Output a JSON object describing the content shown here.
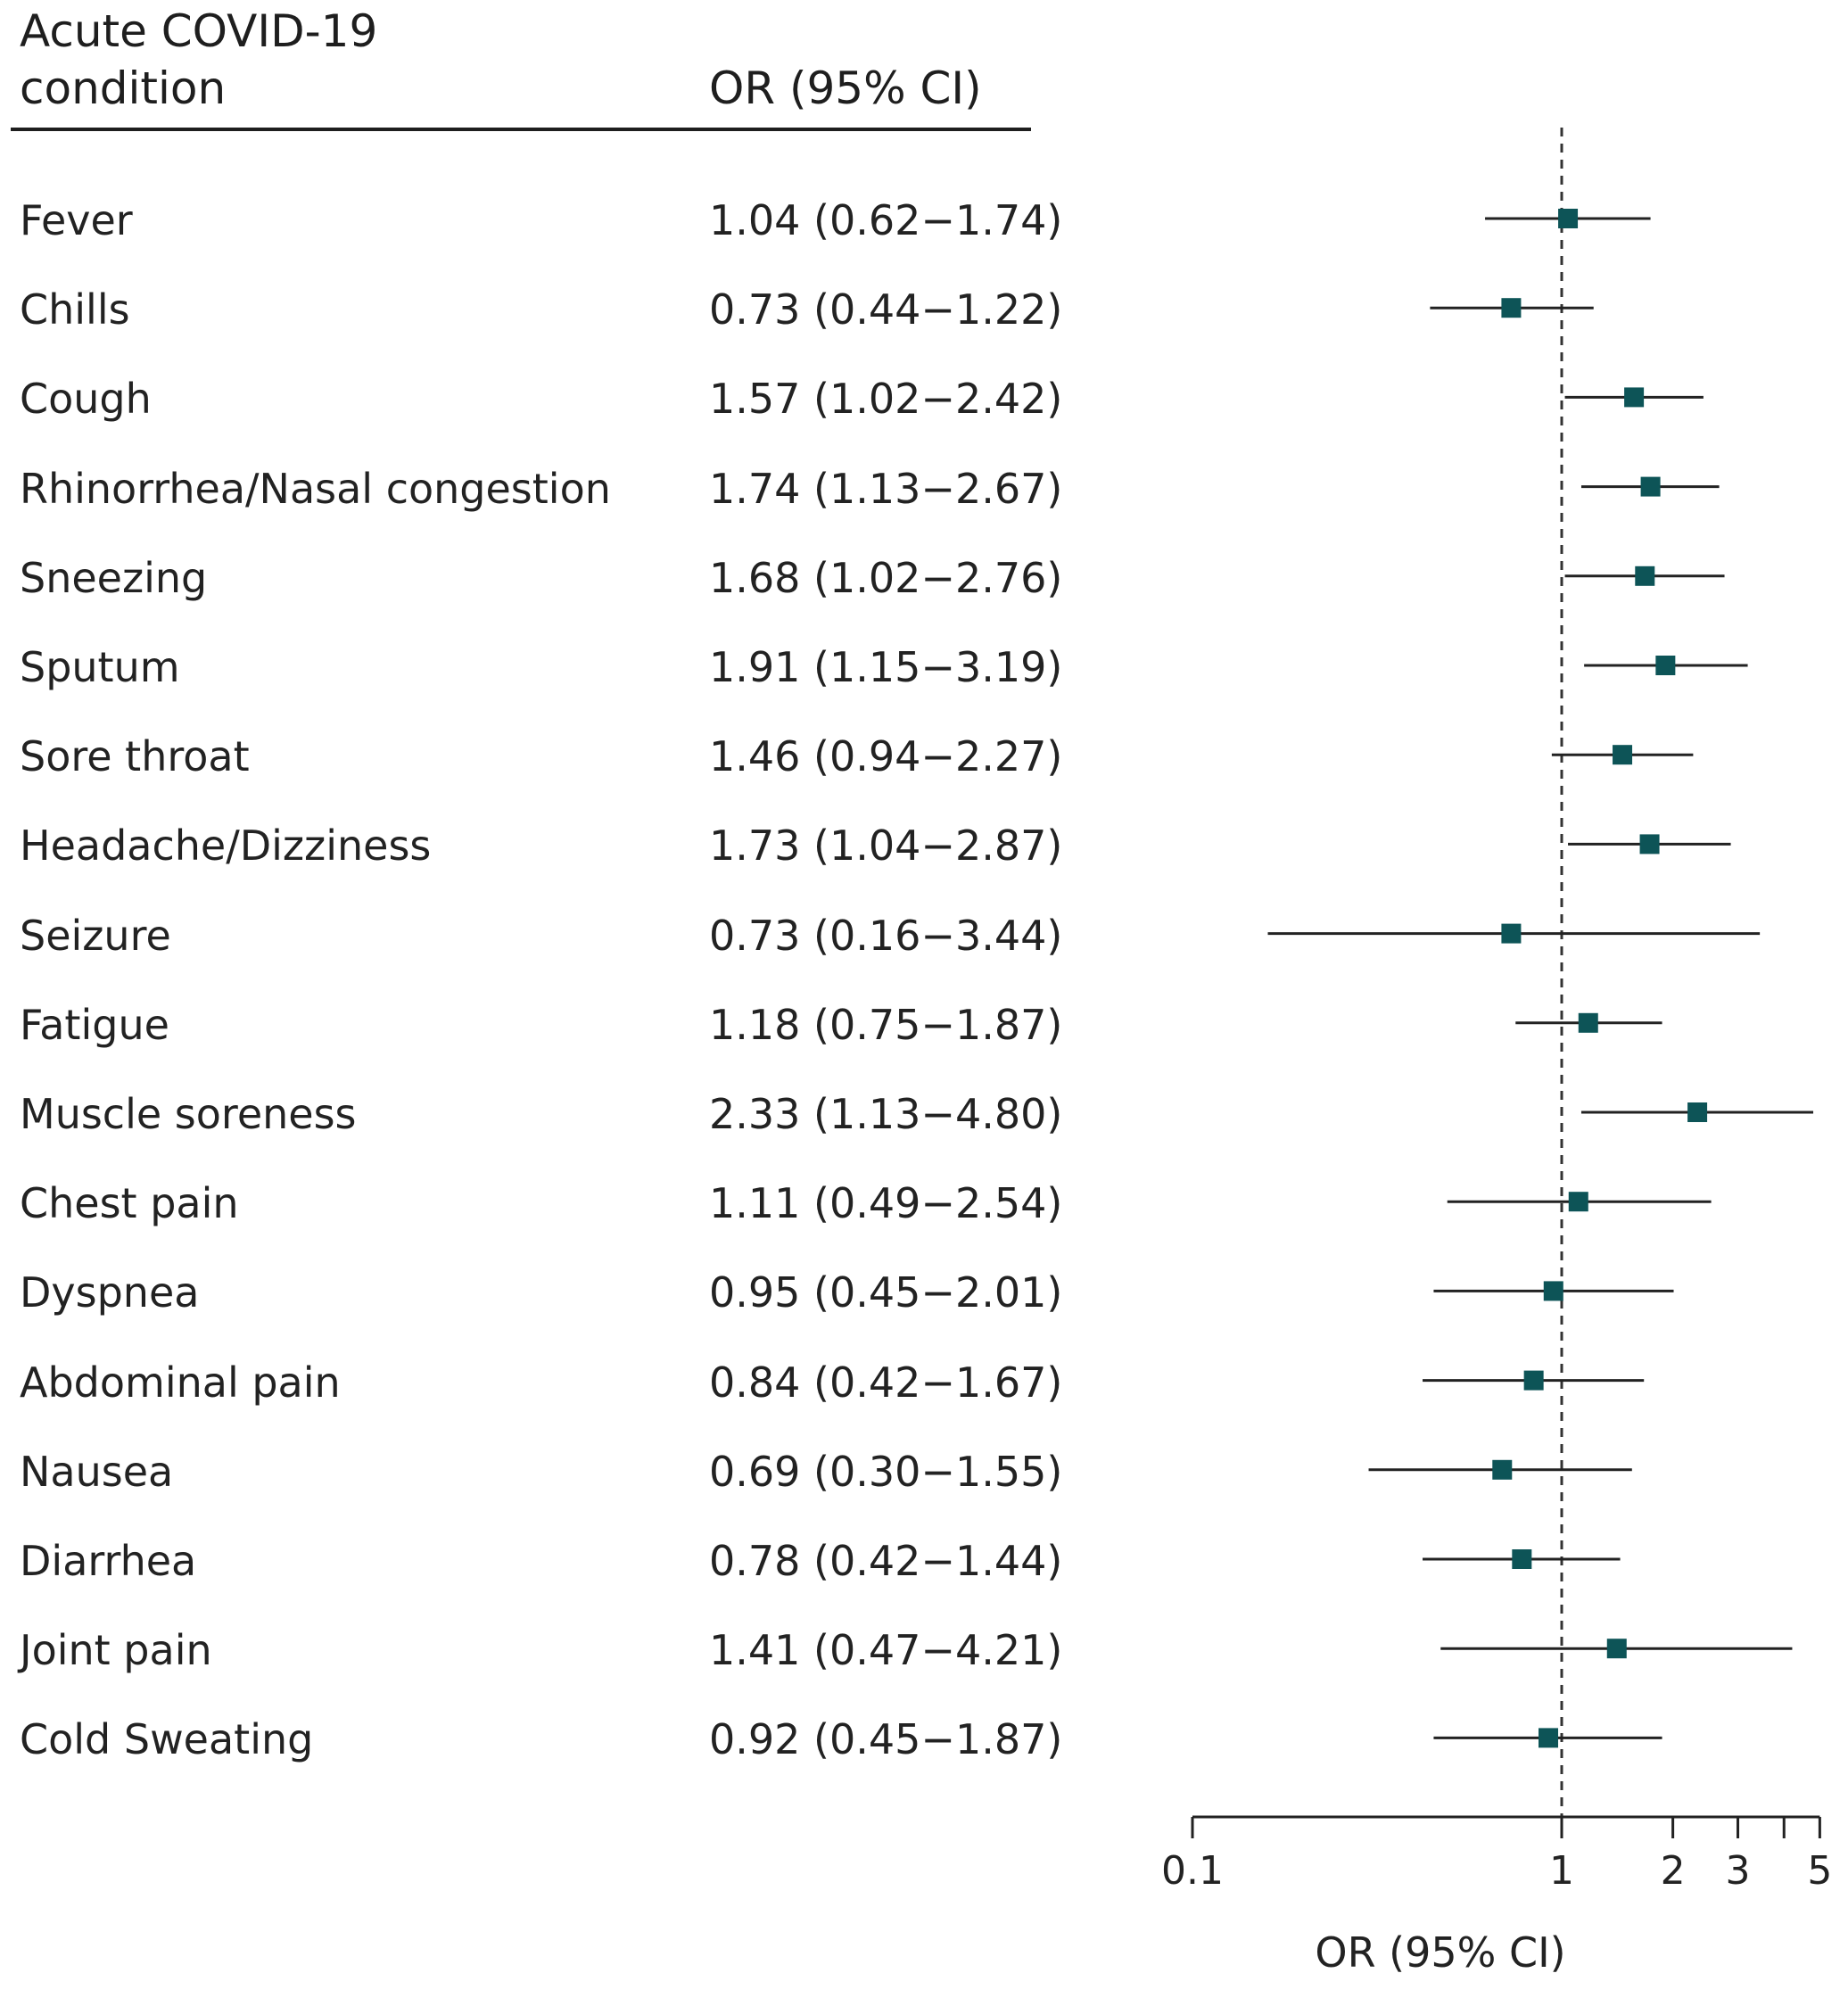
{
  "header": {
    "condition_line1": "Acute COVID-19",
    "condition_line2": "condition",
    "or_label": "OR (95% CI)"
  },
  "colors": {
    "marker": "#0d5457",
    "line": "#222222",
    "reference_line": "#333333"
  },
  "chart_data": {
    "type": "forest",
    "xlabel": "OR (95% CI)",
    "x_scale": "log",
    "xlim": [
      0.1,
      5
    ],
    "xticks": [
      0.1,
      1,
      2,
      3,
      4,
      5
    ],
    "xtick_labels": [
      "0.1",
      "1",
      "2",
      "3",
      "",
      "5"
    ],
    "reference_line": 1,
    "rows": [
      {
        "label": "Fever",
        "or": 1.04,
        "lo": 0.62,
        "hi": 1.74,
        "text": "1.04 (0.62−1.74)"
      },
      {
        "label": "Chills",
        "or": 0.73,
        "lo": 0.44,
        "hi": 1.22,
        "text": "0.73 (0.44−1.22)"
      },
      {
        "label": "Cough",
        "or": 1.57,
        "lo": 1.02,
        "hi": 2.42,
        "text": "1.57 (1.02−2.42)"
      },
      {
        "label": "Rhinorrhea/Nasal congestion",
        "or": 1.74,
        "lo": 1.13,
        "hi": 2.67,
        "text": "1.74 (1.13−2.67)"
      },
      {
        "label": "Sneezing",
        "or": 1.68,
        "lo": 1.02,
        "hi": 2.76,
        "text": "1.68 (1.02−2.76)"
      },
      {
        "label": "Sputum",
        "or": 1.91,
        "lo": 1.15,
        "hi": 3.19,
        "text": "1.91 (1.15−3.19)"
      },
      {
        "label": "Sore throat",
        "or": 1.46,
        "lo": 0.94,
        "hi": 2.27,
        "text": "1.46 (0.94−2.27)"
      },
      {
        "label": "Headache/Dizziness",
        "or": 1.73,
        "lo": 1.04,
        "hi": 2.87,
        "text": "1.73 (1.04−2.87)"
      },
      {
        "label": "Seizure",
        "or": 0.73,
        "lo": 0.16,
        "hi": 3.44,
        "text": "0.73 (0.16−3.44)"
      },
      {
        "label": "Fatigue",
        "or": 1.18,
        "lo": 0.75,
        "hi": 1.87,
        "text": "1.18 (0.75−1.87)"
      },
      {
        "label": "Muscle soreness",
        "or": 2.33,
        "lo": 1.13,
        "hi": 4.8,
        "text": "2.33 (1.13−4.80)"
      },
      {
        "label": "Chest pain",
        "or": 1.11,
        "lo": 0.49,
        "hi": 2.54,
        "text": "1.11 (0.49−2.54)"
      },
      {
        "label": "Dyspnea",
        "or": 0.95,
        "lo": 0.45,
        "hi": 2.01,
        "text": "0.95 (0.45−2.01)"
      },
      {
        "label": "Abdominal pain",
        "or": 0.84,
        "lo": 0.42,
        "hi": 1.67,
        "text": "0.84 (0.42−1.67)"
      },
      {
        "label": "Nausea",
        "or": 0.69,
        "lo": 0.3,
        "hi": 1.55,
        "text": "0.69 (0.30−1.55)"
      },
      {
        "label": "Diarrhea",
        "or": 0.78,
        "lo": 0.42,
        "hi": 1.44,
        "text": "0.78 (0.42−1.44)"
      },
      {
        "label": "Joint pain",
        "or": 1.41,
        "lo": 0.47,
        "hi": 4.21,
        "text": "1.41 (0.47−4.21)"
      },
      {
        "label": "Cold Sweating",
        "or": 0.92,
        "lo": 0.45,
        "hi": 1.87,
        "text": "0.92 (0.45−1.87)"
      }
    ]
  }
}
